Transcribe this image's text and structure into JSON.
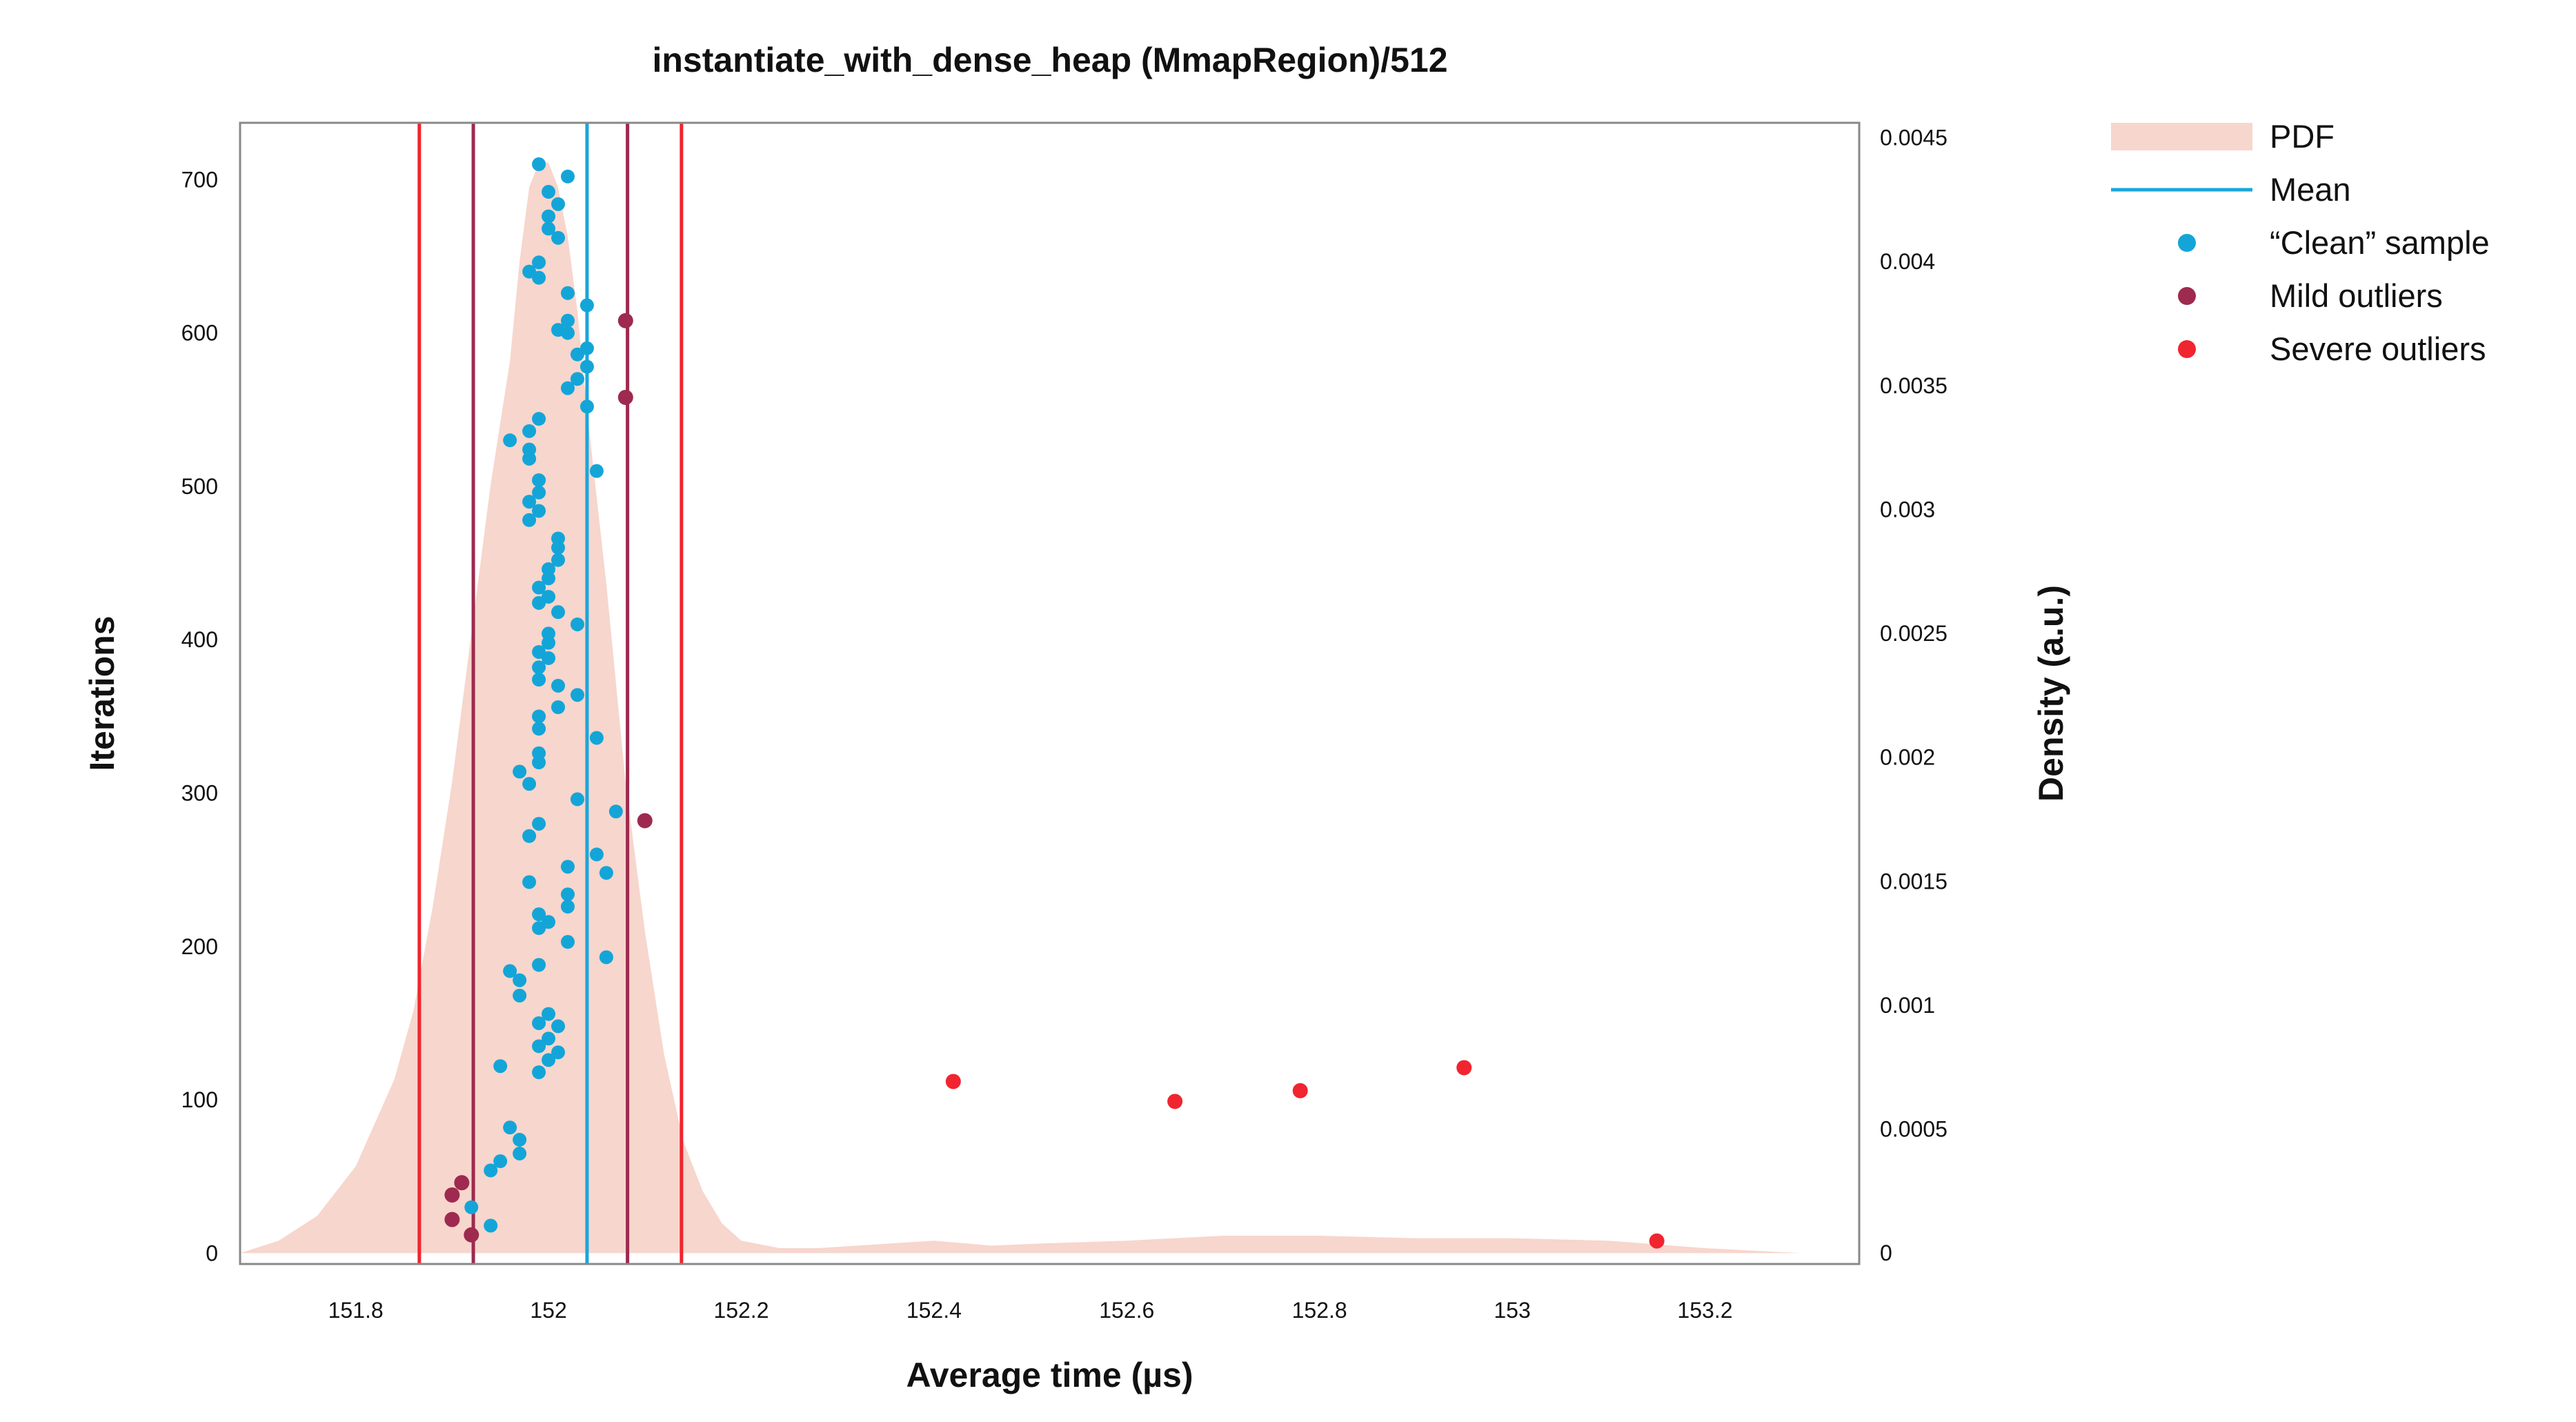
{
  "colors": {
    "pdf": "#f7d6cd",
    "mean": "#1aa6d9",
    "clean": "#14a5d8",
    "mild": "#9e2a4f",
    "severe": "#f0252f",
    "frame": "#888888",
    "text": "#111111"
  },
  "chart_data": {
    "type": "scatter",
    "title": "instantiate_with_dense_heap (MmapRegion)/512",
    "xlabel": "Average time (µs)",
    "ylabel": "Iterations",
    "y2label": "Density (a.u.)",
    "xlim": [
      151.68,
      153.36
    ],
    "ylim": [
      -7,
      737
    ],
    "y2lim": [
      -4.4e-05,
      0.00456
    ],
    "xticks": [
      151.8,
      152,
      152.2,
      152.4,
      152.6,
      152.8,
      153,
      153.2
    ],
    "xtick_labels": [
      "151.8",
      "152",
      "152.2",
      "152.4",
      "152.6",
      "152.8",
      "153",
      "153.2"
    ],
    "yticks": [
      0,
      100,
      200,
      300,
      400,
      500,
      600,
      700
    ],
    "ytick_labels": [
      "0",
      "100",
      "200",
      "300",
      "400",
      "500",
      "600",
      "700"
    ],
    "y2ticks": [
      0,
      0.0005,
      0.001,
      0.0015,
      0.002,
      0.0025,
      0.003,
      0.0035,
      0.004,
      0.0045
    ],
    "y2tick_labels": [
      "0",
      "0.0005",
      "0.001",
      "0.0015",
      "0.002",
      "0.0025",
      "0.003",
      "0.0035",
      "0.004",
      "0.0045"
    ],
    "grid": false,
    "legend_placement": "outside-top-right",
    "legend": [
      {
        "kind": "area",
        "label": "PDF"
      },
      {
        "kind": "line",
        "label": "Mean"
      },
      {
        "kind": "dot",
        "color_key": "clean",
        "label": "“Clean” sample"
      },
      {
        "kind": "dot",
        "color_key": "mild",
        "label": "Mild outliers"
      },
      {
        "kind": "dot",
        "color_key": "severe",
        "label": "Severe outliers"
      }
    ],
    "mean": 152.04,
    "mild_fences": [
      151.922,
      152.082
    ],
    "severe_fences": [
      151.866,
      152.138
    ],
    "pdf": {
      "x": [
        151.68,
        151.72,
        151.76,
        151.8,
        151.84,
        151.86,
        151.88,
        151.9,
        151.92,
        151.94,
        151.96,
        151.97,
        151.98,
        151.99,
        152.0,
        152.01,
        152.02,
        152.03,
        152.04,
        152.06,
        152.08,
        152.1,
        152.12,
        152.14,
        152.16,
        152.18,
        152.2,
        152.24,
        152.28,
        152.32,
        152.36,
        152.4,
        152.46,
        152.52,
        152.6,
        152.7,
        152.8,
        152.9,
        153.0,
        153.1,
        153.2,
        153.25,
        153.3
      ],
      "y": [
        0.0,
        5e-05,
        0.00015,
        0.00035,
        0.0007,
        0.00098,
        0.0014,
        0.0019,
        0.0025,
        0.0031,
        0.0036,
        0.004,
        0.0043,
        0.0044,
        0.0044,
        0.0043,
        0.0041,
        0.0038,
        0.0034,
        0.0027,
        0.0019,
        0.0013,
        0.0008,
        0.00045,
        0.00025,
        0.00012,
        5e-05,
        2e-05,
        2e-05,
        3e-05,
        4e-05,
        5e-05,
        3e-05,
        4e-05,
        5e-05,
        7e-05,
        7e-05,
        6e-05,
        6e-05,
        5e-05,
        2e-05,
        1e-05,
        0.0
      ]
    },
    "clean_points": [
      [
        151.94,
        18
      ],
      [
        151.92,
        30
      ],
      [
        151.97,
        65
      ],
      [
        151.97,
        74
      ],
      [
        151.96,
        82
      ],
      [
        151.95,
        60
      ],
      [
        151.94,
        54
      ],
      [
        151.99,
        118
      ],
      [
        151.95,
        122
      ],
      [
        152.0,
        126
      ],
      [
        151.99,
        135
      ],
      [
        152.01,
        131
      ],
      [
        152.0,
        140
      ],
      [
        151.99,
        150
      ],
      [
        152.01,
        148
      ],
      [
        152.0,
        156
      ],
      [
        151.97,
        168
      ],
      [
        151.97,
        178
      ],
      [
        151.96,
        184
      ],
      [
        151.99,
        188
      ],
      [
        152.06,
        193
      ],
      [
        152.02,
        203
      ],
      [
        151.99,
        212
      ],
      [
        152.0,
        216
      ],
      [
        151.99,
        221
      ],
      [
        152.02,
        226
      ],
      [
        152.02,
        234
      ],
      [
        152.06,
        248
      ],
      [
        151.98,
        242
      ],
      [
        152.02,
        252
      ],
      [
        152.05,
        260
      ],
      [
        151.98,
        272
      ],
      [
        151.99,
        280
      ],
      [
        152.07,
        288
      ],
      [
        152.03,
        296
      ],
      [
        151.98,
        306
      ],
      [
        151.97,
        314
      ],
      [
        151.99,
        320
      ],
      [
        151.99,
        326
      ],
      [
        152.05,
        336
      ],
      [
        151.99,
        342
      ],
      [
        151.99,
        350
      ],
      [
        152.01,
        356
      ],
      [
        152.03,
        364
      ],
      [
        152.01,
        370
      ],
      [
        151.99,
        374
      ],
      [
        151.99,
        382
      ],
      [
        152.0,
        388
      ],
      [
        151.99,
        392
      ],
      [
        152.0,
        398
      ],
      [
        152.0,
        404
      ],
      [
        152.03,
        410
      ],
      [
        152.01,
        418
      ],
      [
        151.99,
        424
      ],
      [
        152.0,
        428
      ],
      [
        151.99,
        434
      ],
      [
        152.0,
        440
      ],
      [
        152.0,
        446
      ],
      [
        152.01,
        452
      ],
      [
        152.01,
        460
      ],
      [
        152.01,
        466
      ],
      [
        151.98,
        478
      ],
      [
        151.99,
        484
      ],
      [
        151.98,
        490
      ],
      [
        151.99,
        496
      ],
      [
        151.99,
        504
      ],
      [
        152.05,
        510
      ],
      [
        151.98,
        518
      ],
      [
        151.98,
        524
      ],
      [
        151.98,
        536
      ],
      [
        151.96,
        530
      ],
      [
        151.99,
        544
      ],
      [
        152.04,
        552
      ],
      [
        152.02,
        564
      ],
      [
        152.03,
        570
      ],
      [
        152.04,
        578
      ],
      [
        152.03,
        586
      ],
      [
        152.04,
        590
      ],
      [
        152.02,
        600
      ],
      [
        152.01,
        602
      ],
      [
        152.02,
        608
      ],
      [
        152.04,
        618
      ],
      [
        152.02,
        626
      ],
      [
        151.99,
        636
      ],
      [
        151.98,
        640
      ],
      [
        151.99,
        646
      ],
      [
        152.01,
        662
      ],
      [
        152.0,
        668
      ],
      [
        152.0,
        676
      ],
      [
        152.01,
        684
      ],
      [
        152.0,
        692
      ],
      [
        152.02,
        702
      ],
      [
        151.99,
        710
      ]
    ],
    "mild_points": [
      [
        151.91,
        46
      ],
      [
        151.9,
        38
      ],
      [
        151.9,
        22
      ],
      [
        151.92,
        12
      ],
      [
        152.08,
        558
      ],
      [
        152.1,
        282
      ],
      [
        152.08,
        608
      ]
    ],
    "severe_points": [
      [
        152.42,
        112
      ],
      [
        152.65,
        99
      ],
      [
        152.78,
        106
      ],
      [
        152.95,
        121
      ],
      [
        153.15,
        8
      ]
    ]
  }
}
